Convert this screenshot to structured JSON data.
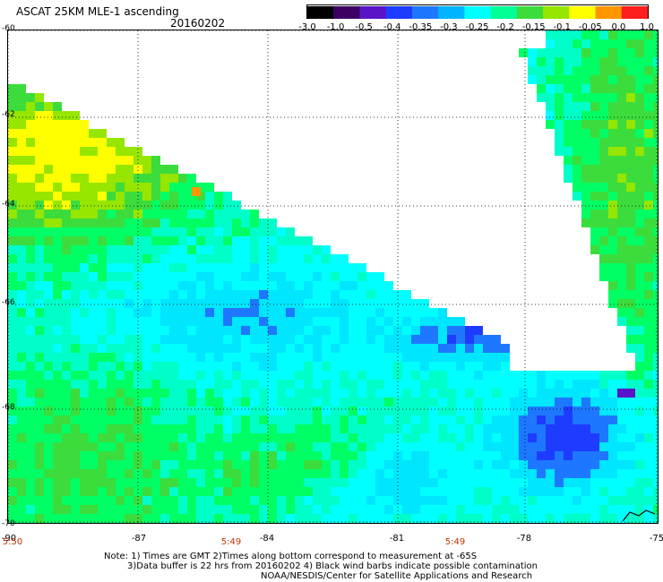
{
  "header": {
    "title": "ASCAT 25KM MLE-1 ascending",
    "date": "20160202"
  },
  "colorbar": {
    "ticks": [
      "-3.0",
      "-1.0",
      "-0.5",
      "-0.4",
      "-0.35",
      "-0.3",
      "-0.25",
      "-0.2",
      "-0.15",
      "-0.1",
      "-0.05",
      "0.0",
      "1.0"
    ],
    "colors": [
      "#000000",
      "#3c0064",
      "#5a14c8",
      "#1e3cff",
      "#1e78ff",
      "#00b4ff",
      "#00ffff",
      "#00ff96",
      "#3cdc3c",
      "#96e600",
      "#ffff00",
      "#ff9600",
      "#ff1e1e"
    ]
  },
  "map": {
    "lat_labels": [
      "-60",
      "-62",
      "-64",
      "-66",
      "-68",
      "-70"
    ],
    "lon_labels": [
      "-90",
      "-87",
      "-84",
      "-81",
      "-78",
      "-75"
    ],
    "time_labels": [
      "5:50",
      "5:49",
      "5:49"
    ],
    "palette": {
      "blue": "#1e3cff",
      "midblue": "#1e78ff",
      "cyan": "#00ffff",
      "lightcyan": "#00e6ff",
      "aqua": "#00ffc8",
      "green": "#00ff64",
      "grass": "#3cdc3c",
      "lime": "#96e600",
      "yellow": "#ffff00",
      "orange": "#ff9600",
      "purple": "#5a14c8",
      "coast": "#000000"
    }
  },
  "footer": {
    "note_line1": "Note: 1) Times are GMT 2)Times along bottom correspond to measurement at -65S",
    "note_line2": "3)Data buffer is 22 hrs from 20160202 4) Black wind barbs indicate possible contamination",
    "credit": "NOAA/NESDIS/Center for Satellite Applications and Research"
  }
}
